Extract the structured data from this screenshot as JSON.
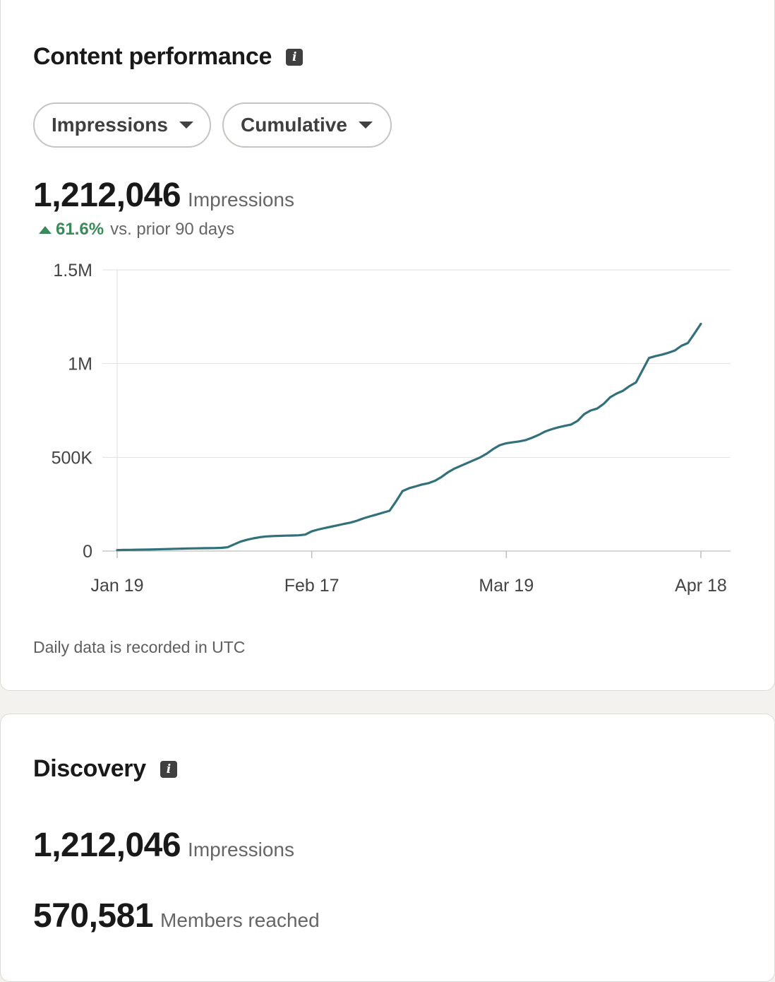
{
  "content_performance": {
    "title": "Content performance",
    "info_icon": "info-icon",
    "filters": [
      {
        "label": "Impressions",
        "icon": "caret-down-icon"
      },
      {
        "label": "Cumulative",
        "icon": "caret-down-icon"
      }
    ],
    "total_value": "1,212,046",
    "total_unit": "Impressions",
    "change_pct": "61.6%",
    "change_text": "vs. prior 90 days",
    "change_direction": "up",
    "footnote": "Daily data is recorded in UTC"
  },
  "discovery": {
    "title": "Discovery",
    "info_icon": "info-icon",
    "impressions_value": "1,212,046",
    "impressions_label": "Impressions",
    "members_value": "570,581",
    "members_label": "Members reached"
  },
  "colors": {
    "line": "#32707a",
    "positive": "#3c8a5a",
    "grid": "#e1e1e1"
  },
  "chart_data": {
    "type": "line",
    "x_tick_labels": [
      "Jan 19",
      "Feb 17",
      "Mar 19",
      "Apr 18"
    ],
    "y_tick_labels": [
      "0",
      "500K",
      "1M",
      "1.5M"
    ],
    "ylim": [
      0,
      1500000
    ],
    "grid": true,
    "series": [
      {
        "values": [
          5000,
          6000,
          6500,
          7000,
          7500,
          8000,
          9000,
          10000,
          11000,
          12000,
          13000,
          14000,
          14500,
          15000,
          15500,
          16000,
          17000,
          20000,
          35000,
          50000,
          60000,
          68000,
          74000,
          78000,
          80000,
          81000,
          82000,
          83000,
          84000,
          88000,
          105000,
          115000,
          123000,
          130000,
          137000,
          145000,
          152000,
          162000,
          175000,
          185000,
          195000,
          205000,
          215000,
          265000,
          320000,
          335000,
          345000,
          355000,
          362000,
          375000,
          395000,
          420000,
          440000,
          455000,
          470000,
          485000,
          500000,
          520000,
          545000,
          565000,
          575000,
          580000,
          585000,
          592000,
          605000,
          620000,
          638000,
          650000,
          660000,
          668000,
          675000,
          695000,
          730000,
          750000,
          760000,
          785000,
          820000,
          840000,
          855000,
          880000,
          900000,
          965000,
          1030000,
          1040000,
          1048000,
          1058000,
          1070000,
          1095000,
          1110000,
          1160000,
          1212046
        ]
      }
    ]
  }
}
